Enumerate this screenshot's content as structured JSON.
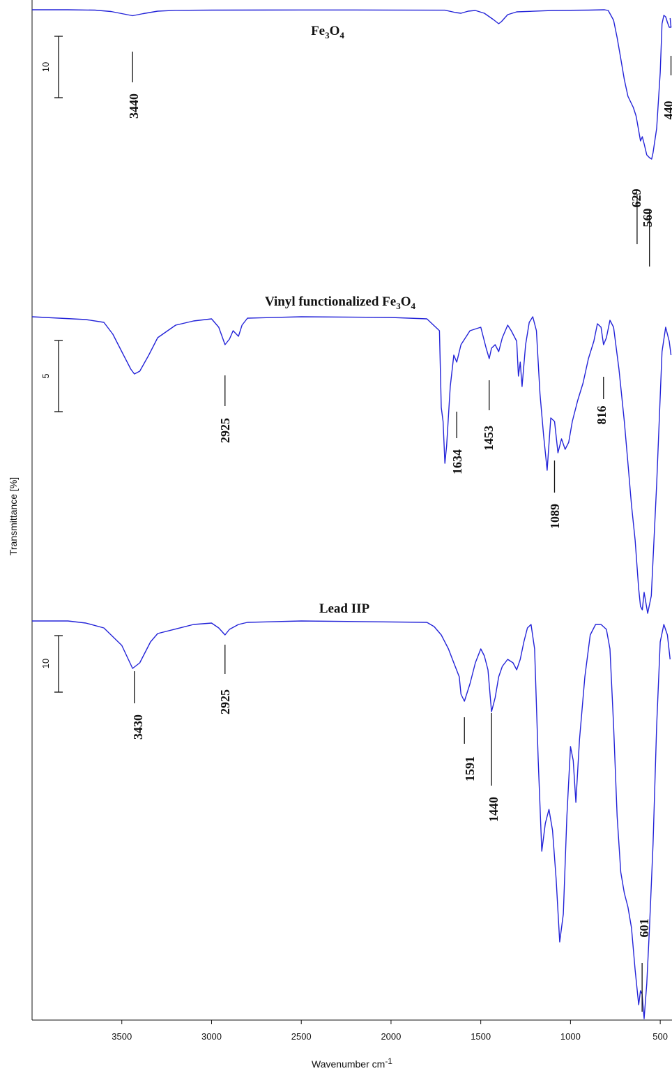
{
  "chart_data": {
    "type": "line",
    "xlabel": "Wavenumber cm-1",
    "xlabel_main": "Wavenumber cm",
    "xlabel_sup": "-1",
    "ylabel": "Transmittance [%]",
    "xlim": [
      4000,
      450
    ],
    "x_ticks": [
      3500,
      3000,
      2500,
      2000,
      1500,
      1000,
      500
    ],
    "series": [
      {
        "name": "Fe3O4",
        "title_parts": [
          "Fe",
          "3",
          "O",
          "4"
        ],
        "scale_bar": "10",
        "points": [
          [
            4000,
            0
          ],
          [
            3800,
            0
          ],
          [
            3650,
            0.5
          ],
          [
            3560,
            2.5
          ],
          [
            3500,
            5.5
          ],
          [
            3440,
            8.5
          ],
          [
            3380,
            5.5
          ],
          [
            3300,
            2
          ],
          [
            3200,
            0.8
          ],
          [
            3000,
            0.5
          ],
          [
            2500,
            0.3
          ],
          [
            2000,
            0.4
          ],
          [
            1700,
            0.6
          ],
          [
            1640,
            4
          ],
          [
            1610,
            5
          ],
          [
            1570,
            2
          ],
          [
            1530,
            1
          ],
          [
            1480,
            5
          ],
          [
            1430,
            14
          ],
          [
            1400,
            20
          ],
          [
            1385,
            17
          ],
          [
            1350,
            7
          ],
          [
            1300,
            3
          ],
          [
            1100,
            1
          ],
          [
            900,
            0.5
          ],
          [
            810,
            0
          ],
          [
            790,
            1
          ],
          [
            760,
            15
          ],
          [
            740,
            40
          ],
          [
            720,
            70
          ],
          [
            700,
            100
          ],
          [
            680,
            124
          ],
          [
            650,
            140
          ],
          [
            635,
            152
          ],
          [
            629,
            160
          ],
          [
            610,
            188
          ],
          [
            600,
            182
          ],
          [
            590,
            192
          ],
          [
            575,
            208
          ],
          [
            560,
            212
          ],
          [
            548,
            214
          ],
          [
            540,
            205
          ],
          [
            520,
            170
          ],
          [
            500,
            90
          ],
          [
            490,
            20
          ],
          [
            480,
            8
          ],
          [
            470,
            10
          ],
          [
            460,
            18
          ],
          [
            450,
            25
          ],
          [
            440,
            25
          ],
          [
            445,
            12
          ]
        ],
        "peaks": [
          "3440",
          "629",
          "560",
          "440"
        ],
        "peak_x": [
          3440,
          629,
          560,
          440
        ]
      },
      {
        "name": "Vinyl functionalized Fe3O4",
        "title_parts": [
          "Vinyl functionalized Fe",
          "3",
          "O",
          "4"
        ],
        "scale_bar": "5",
        "points": [
          [
            4000,
            0
          ],
          [
            3700,
            4
          ],
          [
            3600,
            8
          ],
          [
            3550,
            25
          ],
          [
            3500,
            50
          ],
          [
            3450,
            75
          ],
          [
            3430,
            82
          ],
          [
            3400,
            78
          ],
          [
            3350,
            55
          ],
          [
            3300,
            30
          ],
          [
            3200,
            12
          ],
          [
            3100,
            6
          ],
          [
            3000,
            3
          ],
          [
            2960,
            15
          ],
          [
            2925,
            40
          ],
          [
            2900,
            32
          ],
          [
            2880,
            20
          ],
          [
            2850,
            28
          ],
          [
            2830,
            12
          ],
          [
            2800,
            2
          ],
          [
            2500,
            0
          ],
          [
            2000,
            1
          ],
          [
            1800,
            3
          ],
          [
            1730,
            20
          ],
          [
            1720,
            130
          ],
          [
            1710,
            150
          ],
          [
            1700,
            210
          ],
          [
            1690,
            185
          ],
          [
            1670,
            100
          ],
          [
            1650,
            55
          ],
          [
            1634,
            65
          ],
          [
            1610,
            40
          ],
          [
            1560,
            20
          ],
          [
            1500,
            15
          ],
          [
            1470,
            45
          ],
          [
            1453,
            60
          ],
          [
            1440,
            45
          ],
          [
            1420,
            40
          ],
          [
            1400,
            50
          ],
          [
            1380,
            30
          ],
          [
            1350,
            12
          ],
          [
            1330,
            20
          ],
          [
            1300,
            35
          ],
          [
            1290,
            85
          ],
          [
            1280,
            65
          ],
          [
            1270,
            100
          ],
          [
            1250,
            40
          ],
          [
            1230,
            8
          ],
          [
            1210,
            0
          ],
          [
            1190,
            20
          ],
          [
            1170,
            110
          ],
          [
            1150,
            170
          ],
          [
            1130,
            220
          ],
          [
            1110,
            145
          ],
          [
            1089,
            150
          ],
          [
            1070,
            195
          ],
          [
            1050,
            175
          ],
          [
            1030,
            190
          ],
          [
            1010,
            180
          ],
          [
            990,
            150
          ],
          [
            960,
            120
          ],
          [
            930,
            95
          ],
          [
            900,
            60
          ],
          [
            870,
            35
          ],
          [
            850,
            10
          ],
          [
            830,
            15
          ],
          [
            816,
            40
          ],
          [
            800,
            30
          ],
          [
            780,
            5
          ],
          [
            760,
            15
          ],
          [
            730,
            75
          ],
          [
            700,
            150
          ],
          [
            680,
            210
          ],
          [
            660,
            270
          ],
          [
            640,
            320
          ],
          [
            620,
            390
          ],
          [
            610,
            415
          ],
          [
            600,
            420
          ],
          [
            590,
            395
          ],
          [
            570,
            425
          ],
          [
            550,
            400
          ],
          [
            520,
            240
          ],
          [
            490,
            50
          ],
          [
            470,
            15
          ],
          [
            450,
            35
          ],
          [
            440,
            55
          ]
        ],
        "peaks": [
          "2925",
          "1634",
          "1453",
          "1089",
          "816"
        ],
        "peak_x": [
          2925,
          1634,
          1453,
          1089,
          816
        ]
      },
      {
        "name": "Lead IIP",
        "title_parts": [
          "Lead IIP"
        ],
        "scale_bar": "10",
        "points": [
          [
            4000,
            0
          ],
          [
            3800,
            0
          ],
          [
            3700,
            3
          ],
          [
            3600,
            10
          ],
          [
            3500,
            35
          ],
          [
            3440,
            68
          ],
          [
            3400,
            60
          ],
          [
            3340,
            30
          ],
          [
            3300,
            18
          ],
          [
            3100,
            5
          ],
          [
            3000,
            3
          ],
          [
            2960,
            10
          ],
          [
            2925,
            20
          ],
          [
            2900,
            12
          ],
          [
            2850,
            5
          ],
          [
            2800,
            2
          ],
          [
            2500,
            0
          ],
          [
            1800,
            2
          ],
          [
            1760,
            8
          ],
          [
            1720,
            20
          ],
          [
            1680,
            40
          ],
          [
            1650,
            60
          ],
          [
            1620,
            80
          ],
          [
            1610,
            105
          ],
          [
            1591,
            115
          ],
          [
            1560,
            90
          ],
          [
            1530,
            60
          ],
          [
            1500,
            40
          ],
          [
            1480,
            50
          ],
          [
            1460,
            70
          ],
          [
            1440,
            130
          ],
          [
            1420,
            110
          ],
          [
            1400,
            80
          ],
          [
            1380,
            65
          ],
          [
            1350,
            55
          ],
          [
            1320,
            60
          ],
          [
            1300,
            70
          ],
          [
            1280,
            55
          ],
          [
            1260,
            30
          ],
          [
            1240,
            10
          ],
          [
            1220,
            5
          ],
          [
            1200,
            40
          ],
          [
            1180,
            200
          ],
          [
            1160,
            330
          ],
          [
            1140,
            290
          ],
          [
            1120,
            270
          ],
          [
            1100,
            300
          ],
          [
            1080,
            370
          ],
          [
            1060,
            460
          ],
          [
            1040,
            420
          ],
          [
            1020,
            280
          ],
          [
            1000,
            180
          ],
          [
            985,
            200
          ],
          [
            970,
            260
          ],
          [
            950,
            170
          ],
          [
            920,
            80
          ],
          [
            890,
            20
          ],
          [
            860,
            5
          ],
          [
            830,
            5
          ],
          [
            800,
            12
          ],
          [
            780,
            40
          ],
          [
            760,
            150
          ],
          [
            740,
            280
          ],
          [
            720,
            360
          ],
          [
            700,
            390
          ],
          [
            680,
            410
          ],
          [
            660,
            440
          ],
          [
            640,
            500
          ],
          [
            620,
            550
          ],
          [
            610,
            530
          ],
          [
            601,
            535
          ],
          [
            590,
            570
          ],
          [
            575,
            520
          ],
          [
            560,
            440
          ],
          [
            540,
            320
          ],
          [
            520,
            150
          ],
          [
            500,
            30
          ],
          [
            480,
            5
          ],
          [
            460,
            20
          ],
          [
            445,
            55
          ]
        ],
        "peaks": [
          "3430",
          "2925",
          "1591",
          "1440",
          "601"
        ],
        "peak_x": [
          3430,
          2925,
          1591,
          1440,
          601
        ]
      }
    ]
  }
}
